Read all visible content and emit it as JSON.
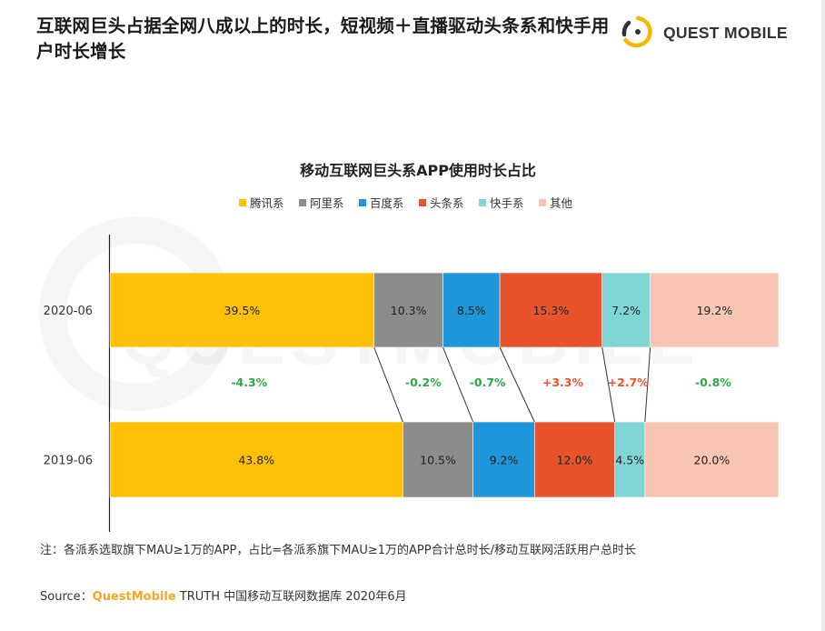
{
  "headline": "互联网巨头占据全网八成以上的时长，短视频＋直播驱动头条系和快手用户时长增长",
  "logo": {
    "text": "QUEST MOBILE",
    "icon": "questmobile-logo-icon"
  },
  "watermark": "QUESTMOBILE",
  "chart_data": {
    "type": "bar",
    "stacked": "100%",
    "orientation": "horizontal",
    "title": "移动互联网巨头系APP使用时长占比",
    "categories": [
      "2020-06",
      "2019-06"
    ],
    "legend_position": "top",
    "series": [
      {
        "name": "腾讯系",
        "color": "#ffc107",
        "values": [
          39.5,
          43.8
        ],
        "labels": [
          "39.5%",
          "43.8%"
        ],
        "change": "-4.3%",
        "change_color": "#2fa54a"
      },
      {
        "name": "阿里系",
        "color": "#8c8c8c",
        "values": [
          10.3,
          10.5
        ],
        "labels": [
          "10.3%",
          "10.5%"
        ],
        "change": "-0.2%",
        "change_color": "#2fa54a"
      },
      {
        "name": "百度系",
        "color": "#1e96dc",
        "values": [
          8.5,
          9.2
        ],
        "labels": [
          "8.5%",
          "9.2%"
        ],
        "change": "-0.7%",
        "change_color": "#2fa54a"
      },
      {
        "name": "头条系",
        "color": "#e8532c",
        "values": [
          15.3,
          12.0
        ],
        "labels": [
          "15.3%",
          "12.0%"
        ],
        "change": "+3.3%",
        "change_color": "#e8532c"
      },
      {
        "name": "快手系",
        "color": "#7fd6d4",
        "values": [
          7.2,
          4.5
        ],
        "labels": [
          "7.2%",
          "4.5%"
        ],
        "change": "+2.7%",
        "change_color": "#e8532c"
      },
      {
        "name": "其他",
        "color": "#f8c4b4",
        "values": [
          19.2,
          20.0
        ],
        "labels": [
          "19.2%",
          "20.0%"
        ],
        "change": "-0.8%",
        "change_color": "#2fa54a"
      }
    ]
  },
  "footnote": "注：各派系选取旗下MAU≥1万的APP，占比=各派系旗下MAU≥1万的APP合计总时长/移动互联网活跃用户总时长",
  "source": {
    "prefix": "Source：",
    "brand": "QuestMobile",
    "rest": " TRUTH 中国移动互联网数据库 2020年6月"
  }
}
